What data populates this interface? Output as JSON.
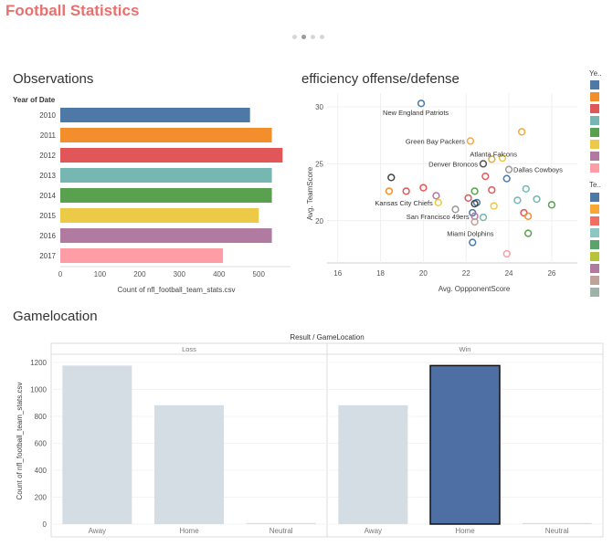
{
  "dashboard": {
    "title": "Football Statistics",
    "pager_count": 4,
    "pager_active": 1
  },
  "observations": {
    "title": "Observations",
    "row_header": "Year of Date",
    "xlabel": "Count of nfl_football_team_stats.csv",
    "ticks": [
      "0",
      "100",
      "200",
      "300",
      "400",
      "500"
    ]
  },
  "efficiency": {
    "title": "efficiency offense/defense",
    "xlabel": "Avg. OppponentScore",
    "ylabel": "Avg. TeamScore",
    "xticks": [
      "16",
      "18",
      "20",
      "22",
      "24",
      "26"
    ],
    "yticks": [
      "20",
      "25",
      "30"
    ]
  },
  "gamelocation": {
    "title": "Gamelocation",
    "header": "Result / GameLocation",
    "ylabel": "Count of nfl_football_team_stats.csv",
    "panels": [
      "Loss",
      "Win"
    ],
    "yticks": [
      "0",
      "200",
      "400",
      "600",
      "800",
      "1000",
      "1200"
    ],
    "categories": [
      "Away",
      "Home",
      "Neutral"
    ]
  },
  "legend": {
    "year_header": "Ye..",
    "team_header": "Te..",
    "year_colors": [
      "#4e79a7",
      "#f28e2b",
      "#e15759",
      "#76b7b2",
      "#59a14f",
      "#edc948",
      "#b07aa1",
      "#ff9da7"
    ],
    "team_colors": [
      "#4e79a7",
      "#f9a836",
      "#ef6f63",
      "#8cc7c2",
      "#5aa36b",
      "#b7c43a",
      "#b07aa1",
      "#bfa39a",
      "#9fb3a8"
    ]
  },
  "chart_data": [
    {
      "type": "bar",
      "orientation": "horizontal",
      "title": "Observations",
      "row_label": "Year of Date",
      "categories": [
        "2010",
        "2011",
        "2012",
        "2013",
        "2014",
        "2015",
        "2016",
        "2017"
      ],
      "values": [
        478,
        533,
        560,
        533,
        533,
        500,
        533,
        410
      ],
      "colors": [
        "#4e79a7",
        "#f28e2b",
        "#e15759",
        "#76b7b2",
        "#59a14f",
        "#edc948",
        "#b07aa1",
        "#ff9da7"
      ],
      "xlabel": "Count of nfl_football_team_stats.csv",
      "xlim": [
        0,
        580
      ]
    },
    {
      "type": "scatter",
      "title": "efficiency offense/defense",
      "xlabel": "Avg. OppponentScore",
      "ylabel": "Avg. TeamScore",
      "xlim": [
        15.5,
        27.2
      ],
      "ylim": [
        16.3,
        31.2
      ],
      "points": [
        {
          "x": 19.9,
          "y": 30.3,
          "label": "New England Patriots",
          "color": "#4e79a7"
        },
        {
          "x": 22.2,
          "y": 27.0,
          "label": "Green Bay Packers",
          "color": "#f9a836"
        },
        {
          "x": 24.6,
          "y": 27.8,
          "label": "",
          "color": "#f9a836"
        },
        {
          "x": 22.8,
          "y": 25.0,
          "label": "Denver Broncos",
          "color": "#555555"
        },
        {
          "x": 23.2,
          "y": 25.4,
          "label": "Atlanta Falcons",
          "color": "#d9b43a"
        },
        {
          "x": 23.7,
          "y": 25.5,
          "label": "",
          "color": "#edc948"
        },
        {
          "x": 24.0,
          "y": 24.5,
          "label": "Dallas Cowboys",
          "color": "#9a9a9a"
        },
        {
          "x": 18.5,
          "y": 23.8,
          "label": "",
          "color": "#444444"
        },
        {
          "x": 22.9,
          "y": 23.9,
          "label": "",
          "color": "#e15759"
        },
        {
          "x": 23.9,
          "y": 23.7,
          "label": "",
          "color": "#4e79a7"
        },
        {
          "x": 19.2,
          "y": 22.6,
          "label": "",
          "color": "#e15759"
        },
        {
          "x": 20.0,
          "y": 22.9,
          "label": "",
          "color": "#e15759"
        },
        {
          "x": 20.6,
          "y": 22.2,
          "label": "",
          "color": "#b07aa1"
        },
        {
          "x": 18.4,
          "y": 22.6,
          "label": "",
          "color": "#f28e2b"
        },
        {
          "x": 22.1,
          "y": 22.0,
          "label": "",
          "color": "#e15759"
        },
        {
          "x": 22.4,
          "y": 22.6,
          "label": "",
          "color": "#59a14f"
        },
        {
          "x": 23.2,
          "y": 22.7,
          "label": "",
          "color": "#e15759"
        },
        {
          "x": 24.4,
          "y": 21.8,
          "label": "",
          "color": "#76b7b2"
        },
        {
          "x": 24.8,
          "y": 22.8,
          "label": "",
          "color": "#76b7b2"
        },
        {
          "x": 25.3,
          "y": 21.9,
          "label": "",
          "color": "#76b7b2"
        },
        {
          "x": 26.0,
          "y": 21.4,
          "label": "",
          "color": "#59a14f"
        },
        {
          "x": 20.7,
          "y": 21.6,
          "label": "Kansas City Chiefs",
          "color": "#edc948"
        },
        {
          "x": 22.5,
          "y": 21.6,
          "label": "",
          "color": "#4e79a7"
        },
        {
          "x": 22.4,
          "y": 21.5,
          "label": "",
          "color": "#444444"
        },
        {
          "x": 23.3,
          "y": 21.3,
          "label": "",
          "color": "#edc948"
        },
        {
          "x": 21.5,
          "y": 21.0,
          "label": "",
          "color": "#9a9a9a"
        },
        {
          "x": 22.3,
          "y": 20.7,
          "label": "",
          "color": "#4e79a7"
        },
        {
          "x": 22.4,
          "y": 20.4,
          "label": "San Francisco 49ers",
          "color": "#b07aa1"
        },
        {
          "x": 22.4,
          "y": 19.9,
          "label": "",
          "color": "#bfa39a"
        },
        {
          "x": 22.8,
          "y": 20.3,
          "label": "",
          "color": "#76b7b2"
        },
        {
          "x": 24.7,
          "y": 20.7,
          "label": "",
          "color": "#e15759"
        },
        {
          "x": 24.9,
          "y": 20.4,
          "label": "",
          "color": "#f28e2b"
        },
        {
          "x": 24.9,
          "y": 18.9,
          "label": "",
          "color": "#59a14f"
        },
        {
          "x": 22.3,
          "y": 18.1,
          "label": "Miami Dolphins",
          "color": "#4e79a7"
        },
        {
          "x": 23.9,
          "y": 17.1,
          "label": "",
          "color": "#ff9da7"
        }
      ]
    },
    {
      "type": "bar",
      "title": "Gamelocation",
      "header": "Result / GameLocation",
      "ylabel": "Count of nfl_football_team_stats.csv",
      "ylim": [
        0,
        1260
      ],
      "panels": [
        {
          "name": "Loss",
          "categories": [
            "Away",
            "Home",
            "Neutral"
          ],
          "values": [
            1176,
            882,
            8
          ],
          "highlight": [
            false,
            false,
            false
          ]
        },
        {
          "name": "Win",
          "categories": [
            "Away",
            "Home",
            "Neutral"
          ],
          "values": [
            882,
            1176,
            8
          ],
          "highlight": [
            false,
            true,
            false
          ]
        }
      ],
      "colors": {
        "muted": "#d5dde4",
        "highlight": "#4e6fa3"
      }
    }
  ]
}
